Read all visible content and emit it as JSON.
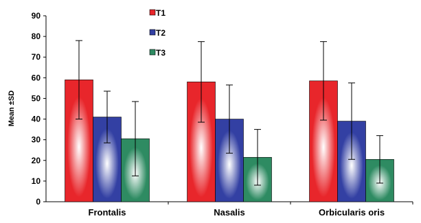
{
  "chart_data": {
    "type": "bar",
    "title": "",
    "xlabel": "",
    "ylabel": "Mean ±SD",
    "ylim": [
      0,
      90
    ],
    "yticks": [
      0,
      10,
      20,
      30,
      40,
      50,
      60,
      70,
      80,
      90
    ],
    "grid": false,
    "legend_position": "top-center",
    "categories": [
      "Frontalis",
      "Nasalis",
      "Orbicularis oris"
    ],
    "series": [
      {
        "name": "T1",
        "color": "#e8262b",
        "values": [
          59,
          58,
          58.5
        ],
        "sd": [
          19,
          19.5,
          19
        ]
      },
      {
        "name": "T2",
        "color": "#3340a3",
        "values": [
          41,
          40,
          39
        ],
        "sd": [
          12.5,
          16.5,
          18.5
        ]
      },
      {
        "name": "T3",
        "color": "#2e8b62",
        "values": [
          30.5,
          21.5,
          20.5
        ],
        "sd": [
          18,
          13.5,
          11.5
        ]
      }
    ]
  }
}
